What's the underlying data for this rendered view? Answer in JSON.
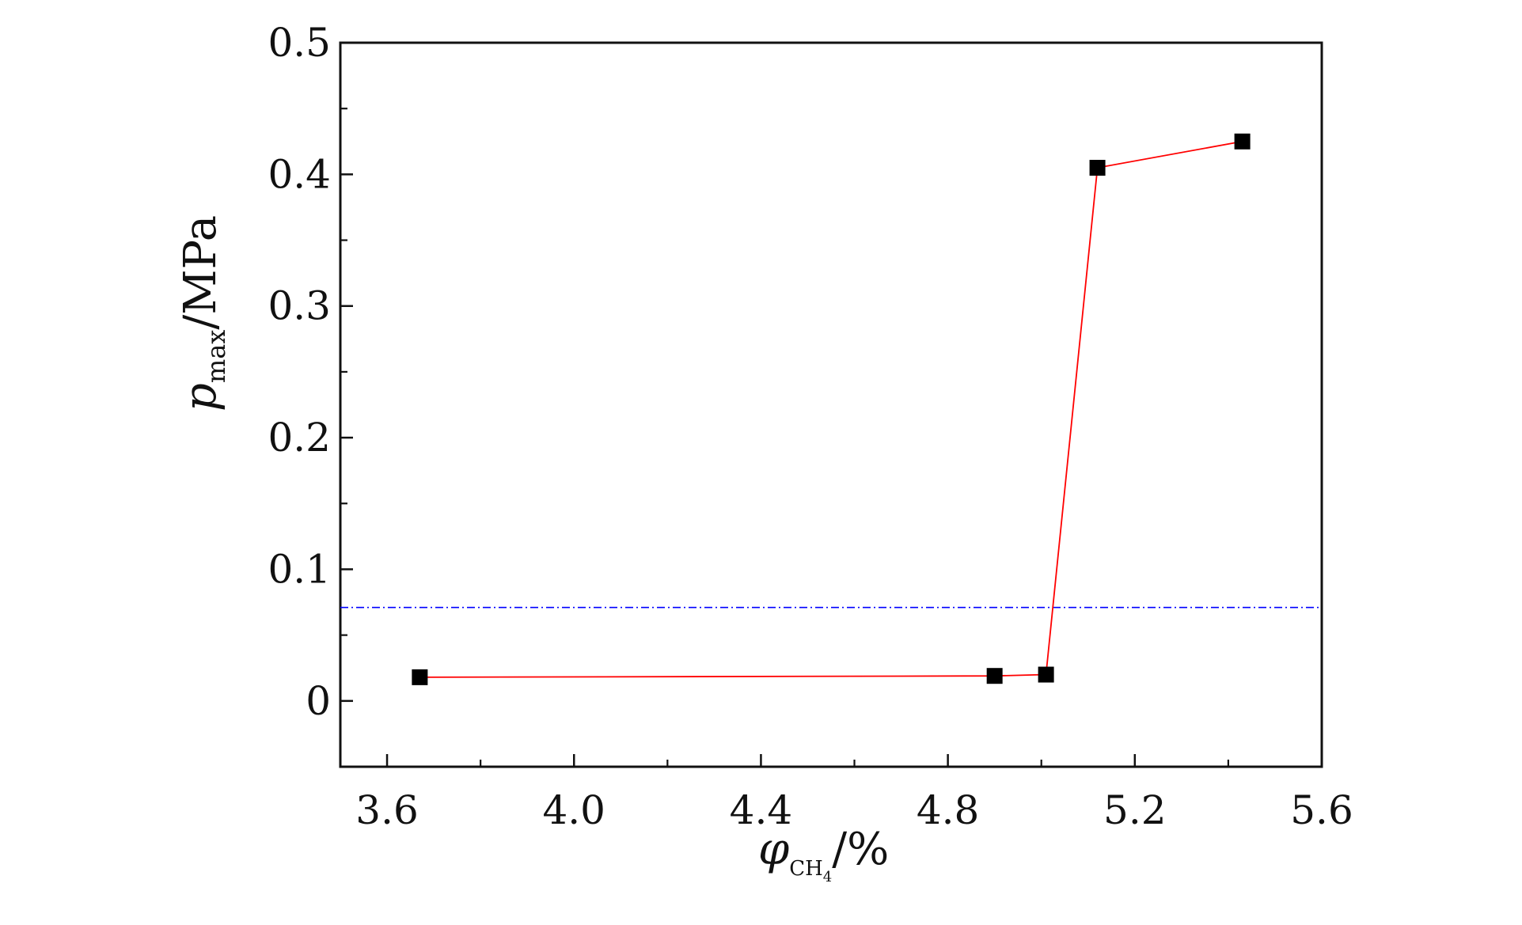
{
  "chart_data": {
    "type": "line",
    "title": "",
    "xlabel": {
      "main": "φ",
      "sub": "CH",
      "subsub": "4",
      "unit": "/%"
    },
    "ylabel": {
      "main": "p",
      "sub": "max",
      "unit": "/MPa"
    },
    "xlim": [
      3.5,
      5.6
    ],
    "ylim": [
      -0.05,
      0.5
    ],
    "xticks": [
      3.6,
      4.0,
      4.4,
      4.8,
      5.2,
      5.6
    ],
    "xtick_labels": [
      "3.6",
      "4.0",
      "4.4",
      "4.8",
      "5.2",
      "5.6"
    ],
    "yticks": [
      0,
      0.1,
      0.2,
      0.3,
      0.4,
      0.5
    ],
    "ytick_labels": [
      "0",
      "0.1",
      "0.2",
      "0.3",
      "0.4",
      "0.5"
    ],
    "grid": false,
    "legend": "none",
    "series": [
      {
        "x": [
          3.67,
          4.9,
          5.01,
          5.12,
          5.43
        ],
        "y": [
          0.018,
          0.019,
          0.02,
          0.405,
          0.425
        ],
        "line_color": "#ff0000",
        "marker": "square",
        "marker_color": "#000000"
      }
    ],
    "reference_lines": [
      {
        "orientation": "horizontal",
        "y": 0.071,
        "style": "dash-dot",
        "color": "#0000ff"
      }
    ]
  }
}
